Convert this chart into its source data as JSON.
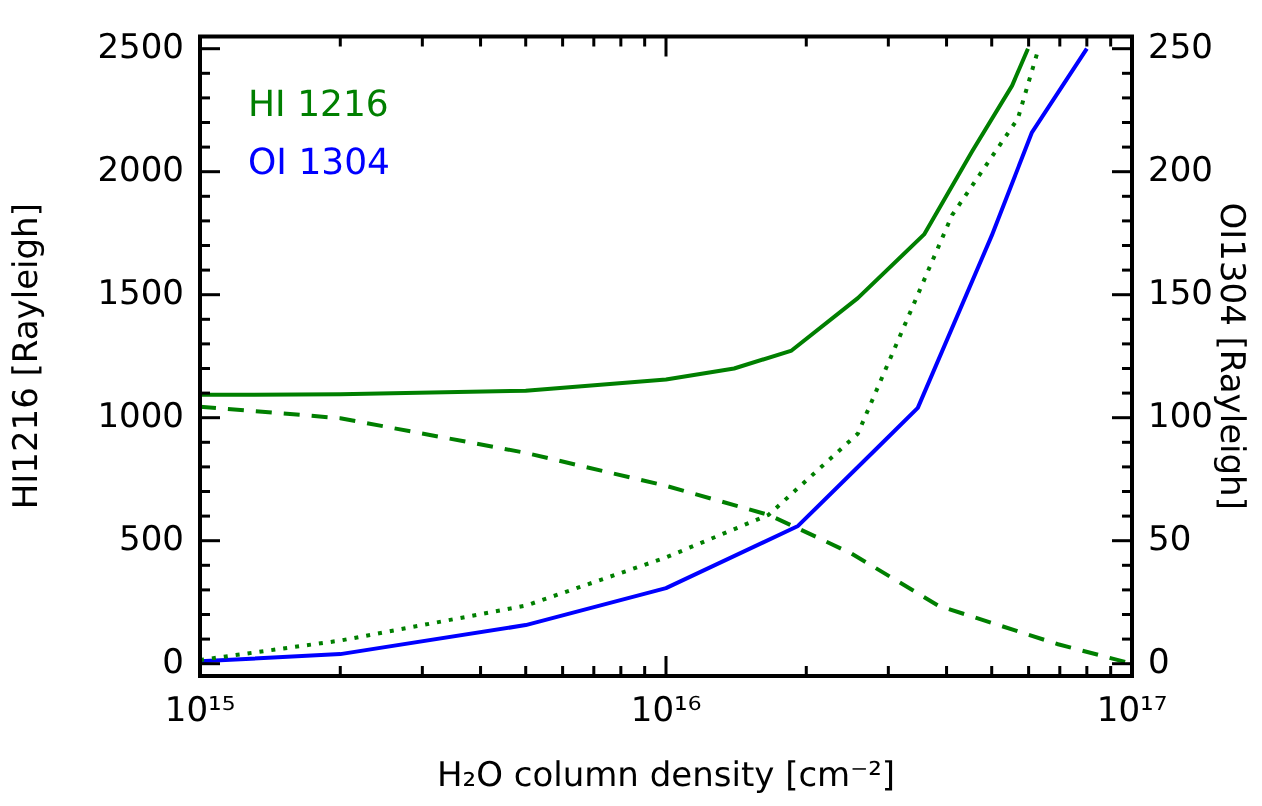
{
  "chart_data": {
    "type": "line",
    "xlabel": "H₂O column density [cm⁻²]",
    "ylabel": "HI1216 [Rayleigh]",
    "y2label": "OI1304 [Rayleigh]",
    "log": "x",
    "legend": "top left",
    "marker": "none",
    "xlim": [
      1000000000000000.0,
      1e+17
    ],
    "xticks": [
      {
        "value": 1000000000000000.0,
        "label": "10¹⁵"
      },
      {
        "value": 2000000000000000.0,
        "label": null
      },
      {
        "value": 3000000000000000.0,
        "label": null
      },
      {
        "value": 4000000000000000.0,
        "label": null
      },
      {
        "value": 5000000000000000.0,
        "label": null
      },
      {
        "value": 6000000000000000.0,
        "label": null
      },
      {
        "value": 7000000000000000.0,
        "label": null
      },
      {
        "value": 8000000000000000.0,
        "label": null
      },
      {
        "value": 9000000000000000.0,
        "label": null
      },
      {
        "value": 1e+16,
        "label": "10¹⁶"
      },
      {
        "value": 2e+16,
        "label": null
      },
      {
        "value": 3e+16,
        "label": null
      },
      {
        "value": 4e+16,
        "label": null
      },
      {
        "value": 5e+16,
        "label": null
      },
      {
        "value": 6e+16,
        "label": null
      },
      {
        "value": 7e+16,
        "label": null
      },
      {
        "value": 8e+16,
        "label": null
      },
      {
        "value": 9e+16,
        "label": null
      },
      {
        "value": 1e+17,
        "label": "10¹⁷"
      }
    ],
    "ylim": [
      -50,
      2550
    ],
    "yticks": [
      0,
      {
        "value": 100,
        "label": null
      },
      {
        "value": 200,
        "label": null
      },
      {
        "value": 300,
        "label": null
      },
      {
        "value": 400,
        "label": null
      },
      500,
      {
        "value": 600,
        "label": null
      },
      {
        "value": 700,
        "label": null
      },
      {
        "value": 800,
        "label": null
      },
      {
        "value": 900,
        "label": null
      },
      1000,
      {
        "value": 1100,
        "label": null
      },
      {
        "value": 1200,
        "label": null
      },
      {
        "value": 1300,
        "label": null
      },
      {
        "value": 1400,
        "label": null
      },
      1500,
      {
        "value": 1600,
        "label": null
      },
      {
        "value": 1700,
        "label": null
      },
      {
        "value": 1800,
        "label": null
      },
      {
        "value": 1900,
        "label": null
      },
      2000,
      {
        "value": 2100,
        "label": null
      },
      {
        "value": 2200,
        "label": null
      },
      {
        "value": 2300,
        "label": null
      },
      {
        "value": 2400,
        "label": null
      },
      2500
    ],
    "y2lim": [
      -5,
      255
    ],
    "y2ticks": [
      0,
      {
        "value": 10,
        "label": null
      },
      {
        "value": 20,
        "label": null
      },
      {
        "value": 30,
        "label": null
      },
      {
        "value": 40,
        "label": null
      },
      50,
      {
        "value": 60,
        "label": null
      },
      {
        "value": 70,
        "label": null
      },
      {
        "value": 80,
        "label": null
      },
      {
        "value": 90,
        "label": null
      },
      100,
      {
        "value": 110,
        "label": null
      },
      {
        "value": 120,
        "label": null
      },
      {
        "value": 130,
        "label": null
      },
      {
        "value": 140,
        "label": null
      },
      150,
      {
        "value": 160,
        "label": null
      },
      {
        "value": 170,
        "label": null
      },
      {
        "value": 180,
        "label": null
      },
      {
        "value": 190,
        "label": null
      },
      200,
      {
        "value": 210,
        "label": null
      },
      {
        "value": 220,
        "label": null
      },
      {
        "value": 230,
        "label": null
      },
      {
        "value": 240,
        "label": null
      },
      250
    ],
    "series": [
      {
        "name": "HI 1216",
        "color": "#007f00",
        "line_style": "solid",
        "x": [
          1000000000000000.0,
          2000000000000000.0,
          5000000000000000.0,
          1e+16,
          1.4e+16,
          1.86e+16,
          2.58e+16,
          3.58e+16,
          4.54e+16,
          5.53e+16,
          5.98e+16
        ],
        "values": [
          1093,
          1095,
          1110,
          1155,
          1200,
          1273,
          1486,
          1745,
          2083,
          2350,
          2500
        ]
      },
      {
        "color": "#007f00",
        "line_style": "dashed",
        "x": [
          1000000000000000.0,
          2000000000000000.0,
          5000000000000000.0,
          1e+16,
          1.66e+16,
          1.92e+16,
          2.5e+16,
          3.84e+16,
          6.94e+16,
          1e+17
        ],
        "values": [
          1045,
          998,
          857,
          723,
          605,
          550,
          448,
          236,
          79,
          0
        ]
      },
      {
        "color": "#007f00",
        "line_style": "dotted",
        "x": [
          1000000000000000.0,
          2000000000000000.0,
          5000000000000000.0,
          1e+16,
          1.66e+16,
          2.58e+16,
          4.11e+16,
          5.69e+16,
          6.3e+16
        ],
        "values": [
          15,
          94,
          236,
          432,
          605,
          935,
          1823,
          2216,
          2500
        ]
      },
      {
        "name": "OI 1304",
        "color": "#0000ff",
        "line_style": "solid",
        "axis": "y2",
        "x": [
          1000000000000000.0,
          2000000000000000.0,
          5000000000000000.0,
          1e+16,
          1.92e+16,
          2.85e+16,
          3.47e+16,
          5e+16,
          6.1e+16,
          8e+16
        ],
        "values": [
          1,
          3.9,
          15.7,
          30.7,
          56,
          88,
          104,
          174,
          216,
          250
        ]
      }
    ]
  }
}
